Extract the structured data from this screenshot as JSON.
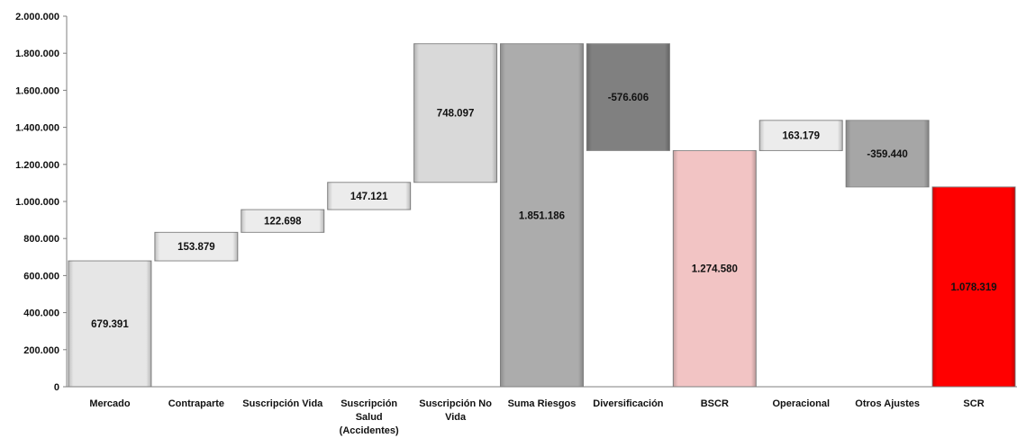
{
  "chart_data": {
    "type": "bar",
    "title": "",
    "xlabel": "",
    "ylabel": "",
    "ylim": [
      0,
      2000000
    ],
    "ytick_step": 200000,
    "yticks": [
      "0",
      "200.000",
      "400.000",
      "600.000",
      "800.000",
      "1.000.000",
      "1.200.000",
      "1.400.000",
      "1.600.000",
      "1.800.000",
      "2.000.000"
    ],
    "grid": false,
    "legend": "none",
    "categories": [
      [
        "Mercado"
      ],
      [
        "Contraparte"
      ],
      [
        "Suscripción Vida"
      ],
      [
        "Suscripción",
        "Salud",
        "(Accidentes)"
      ],
      [
        "Suscripción No",
        "Vida"
      ],
      [
        "Suma Riesgos"
      ],
      [
        "Diversificación"
      ],
      [
        "BSCR"
      ],
      [
        "Operacional"
      ],
      [
        "Otros Ajustes"
      ],
      [
        "SCR"
      ]
    ],
    "bars": [
      {
        "start": 0,
        "end": 679391,
        "label": "679.391",
        "color": "#e6e6e6"
      },
      {
        "start": 679391,
        "end": 833270,
        "label": "153.879",
        "color": "#ececec"
      },
      {
        "start": 833270,
        "end": 955968,
        "label": "122.698",
        "color": "#ececec"
      },
      {
        "start": 955968,
        "end": 1103089,
        "label": "147.121",
        "color": "#ececec"
      },
      {
        "start": 1103089,
        "end": 1851186,
        "label": "748.097",
        "color": "#d9d9d9"
      },
      {
        "start": 0,
        "end": 1851186,
        "label": "1.851.186",
        "color": "#acacac"
      },
      {
        "start": 1851186,
        "end": 1274580,
        "label": "-576.606",
        "color": "#808080"
      },
      {
        "start": 0,
        "end": 1274580,
        "label": "1.274.580",
        "color": "#f2c4c4"
      },
      {
        "start": 1274580,
        "end": 1437759,
        "label": "163.179",
        "color": "#ececec"
      },
      {
        "start": 1437759,
        "end": 1078319,
        "label": "-359.440",
        "color": "#a6a6a6"
      },
      {
        "start": 0,
        "end": 1078319,
        "label": "1.078.319",
        "color": "#ff0000"
      }
    ]
  }
}
